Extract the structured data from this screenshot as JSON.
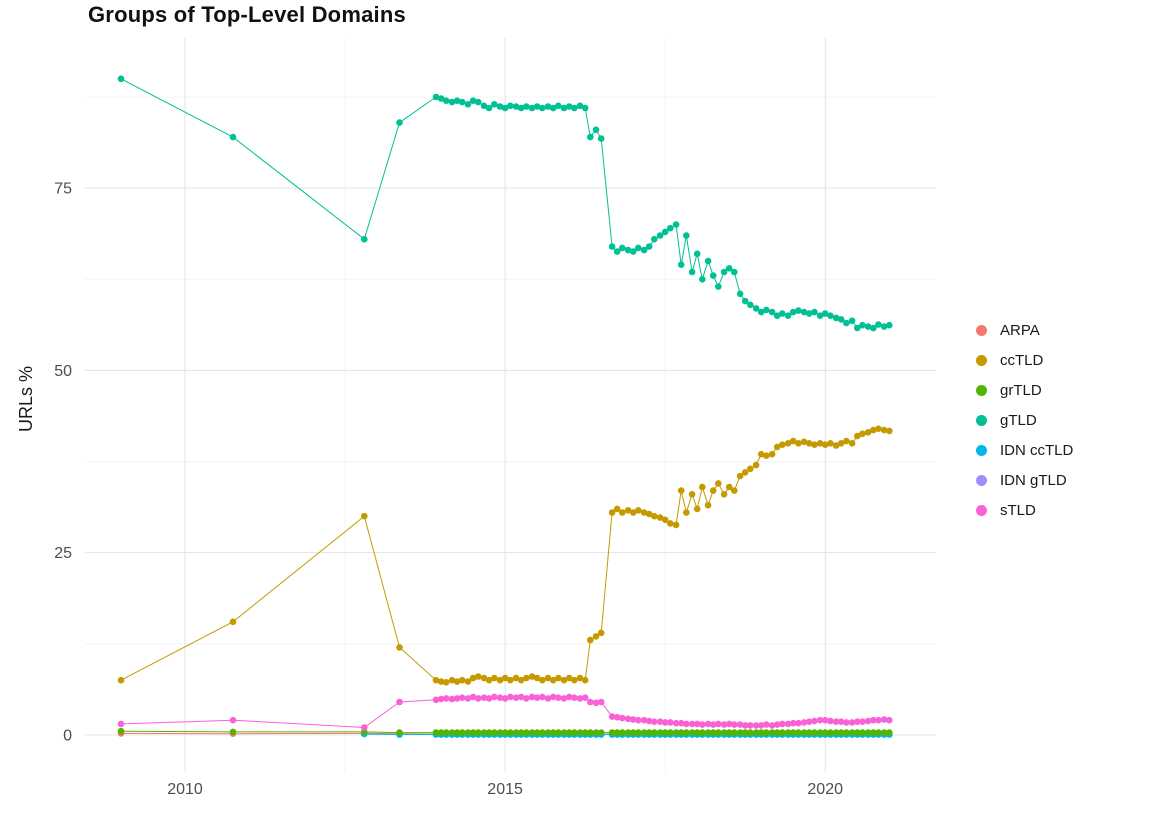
{
  "chart_data": {
    "type": "line",
    "title": "Groups of Top-Level Domains",
    "xlabel": "",
    "x_axis": {
      "ticks": [
        2010,
        2015,
        2020
      ],
      "tick_labels": [
        "2010",
        "2015",
        "2020"
      ],
      "minor": [
        2012.5,
        2017.5
      ],
      "range": [
        2008.4375,
        2021.73
      ]
    },
    "y_axis": {
      "label": "URLs %",
      "ticks": [
        0,
        25,
        50,
        75
      ],
      "tick_labels": [
        "0",
        "25",
        "50",
        "75"
      ],
      "minor": [
        12.5,
        37.5,
        62.5,
        87.5
      ],
      "range": [
        -5.1,
        95.6
      ]
    },
    "legend_position": "right",
    "grid": true,
    "style": {
      "grid_major": "#e3e3e3",
      "grid_minor": "#f4f4f4",
      "tick_text": "#4d4d4d",
      "title_text": "#111111",
      "background": "#ffffff"
    },
    "draw_order": [
      0,
      5,
      4,
      2,
      1,
      3,
      6
    ],
    "x": [
      2009.0,
      2010.75,
      2012.8,
      2013.35,
      2013.92,
      2014.0,
      2014.08,
      2014.17,
      2014.25,
      2014.33,
      2014.42,
      2014.5,
      2014.58,
      2014.67,
      2014.75,
      2014.83,
      2014.92,
      2015.0,
      2015.08,
      2015.17,
      2015.25,
      2015.33,
      2015.42,
      2015.5,
      2015.58,
      2015.67,
      2015.75,
      2015.83,
      2015.92,
      2016.0,
      2016.08,
      2016.17,
      2016.25,
      2016.33,
      2016.42,
      2016.5,
      2016.67,
      2016.75,
      2016.83,
      2016.92,
      2017.0,
      2017.08,
      2017.17,
      2017.25,
      2017.33,
      2017.42,
      2017.5,
      2017.58,
      2017.67,
      2017.75,
      2017.83,
      2017.92,
      2018.0,
      2018.08,
      2018.17,
      2018.25,
      2018.33,
      2018.42,
      2018.5,
      2018.58,
      2018.67,
      2018.75,
      2018.83,
      2018.92,
      2019.0,
      2019.08,
      2019.17,
      2019.25,
      2019.33,
      2019.42,
      2019.5,
      2019.58,
      2019.67,
      2019.75,
      2019.83,
      2019.92,
      2020.0,
      2020.08,
      2020.17,
      2020.25,
      2020.33,
      2020.42,
      2020.5,
      2020.58,
      2020.67,
      2020.75,
      2020.83,
      2020.92,
      2021.0
    ],
    "series": [
      {
        "name": "ARPA",
        "color": "#F8766D",
        "values": [
          0.2,
          0.15,
          0.2,
          0.15,
          0.1,
          0.1,
          0.1,
          0.1,
          0.1,
          0.1,
          0.1,
          0.1,
          0.1,
          0.1,
          0.1,
          0.1,
          0.1,
          0.1,
          0.1,
          0.1,
          0.1,
          0.1,
          0.1,
          0.1,
          0.1,
          0.1,
          0.1,
          0.1,
          0.1,
          0.1,
          0.1,
          0.1,
          0.1,
          0.1,
          0.1,
          0.1,
          0.1,
          0.1,
          0.1,
          0.1,
          0.1,
          0.1,
          0.1,
          0.1,
          0.1,
          0.1,
          0.1,
          0.1,
          0.1,
          0.1,
          0.1,
          0.1,
          0.1,
          0.1,
          0.1,
          0.1,
          0.1,
          0.1,
          0.1,
          0.1,
          0.1,
          0.1,
          0.1,
          0.1,
          0.1,
          0.1,
          0.1,
          0.1,
          0.1,
          0.1,
          0.1,
          0.1,
          0.1,
          0.1,
          0.1,
          0.1,
          0.1,
          0.1,
          0.1,
          0.1,
          0.1,
          0.1,
          0.1,
          0.1,
          0.1,
          0.1,
          0.1,
          0.1,
          0.1
        ]
      },
      {
        "name": "ccTLD",
        "color": "#C49A00",
        "values": [
          7.5,
          15.5,
          30.0,
          12.0,
          7.5,
          7.3,
          7.2,
          7.5,
          7.3,
          7.5,
          7.3,
          7.8,
          8.0,
          7.8,
          7.5,
          7.8,
          7.5,
          7.8,
          7.5,
          7.8,
          7.5,
          7.8,
          8.0,
          7.8,
          7.5,
          7.8,
          7.5,
          7.8,
          7.5,
          7.8,
          7.5,
          7.8,
          7.5,
          13.0,
          13.5,
          14.0,
          30.5,
          31.0,
          30.5,
          30.8,
          30.5,
          30.8,
          30.5,
          30.3,
          30.0,
          29.8,
          29.5,
          29.0,
          28.8,
          33.5,
          30.5,
          33.0,
          31.0,
          34.0,
          31.5,
          33.5,
          34.5,
          33.0,
          34.0,
          33.5,
          35.5,
          36.0,
          36.5,
          37.0,
          38.5,
          38.3,
          38.5,
          39.5,
          39.8,
          40.0,
          40.3,
          40.0,
          40.2,
          40.0,
          39.8,
          40.0,
          39.8,
          40.0,
          39.7,
          40.0,
          40.3,
          40.0,
          41.0,
          41.3,
          41.5,
          41.8,
          42.0,
          41.8,
          41.7
        ]
      },
      {
        "name": "grTLD",
        "color": "#53B400",
        "values": [
          0.5,
          0.4,
          0.4,
          0.3,
          0.3,
          0.3,
          0.3,
          0.3,
          0.3,
          0.3,
          0.3,
          0.3,
          0.3,
          0.3,
          0.3,
          0.3,
          0.3,
          0.3,
          0.3,
          0.3,
          0.3,
          0.3,
          0.3,
          0.3,
          0.3,
          0.3,
          0.3,
          0.3,
          0.3,
          0.3,
          0.3,
          0.3,
          0.3,
          0.3,
          0.3,
          0.3,
          0.3,
          0.3,
          0.3,
          0.3,
          0.3,
          0.3,
          0.3,
          0.3,
          0.3,
          0.3,
          0.3,
          0.3,
          0.3,
          0.3,
          0.3,
          0.3,
          0.3,
          0.3,
          0.3,
          0.3,
          0.3,
          0.3,
          0.3,
          0.3,
          0.3,
          0.3,
          0.3,
          0.3,
          0.3,
          0.3,
          0.3,
          0.3,
          0.3,
          0.3,
          0.3,
          0.3,
          0.3,
          0.3,
          0.3,
          0.3,
          0.3,
          0.3,
          0.3,
          0.3,
          0.3,
          0.3,
          0.3,
          0.3,
          0.3,
          0.3,
          0.3,
          0.3,
          0.3
        ]
      },
      {
        "name": "gTLD",
        "color": "#00C094",
        "values": [
          90.0,
          82.0,
          68.0,
          84.0,
          87.5,
          87.3,
          87.0,
          86.8,
          87.0,
          86.8,
          86.5,
          87.0,
          86.8,
          86.3,
          86.0,
          86.5,
          86.2,
          86.0,
          86.3,
          86.2,
          86.0,
          86.2,
          86.0,
          86.2,
          86.0,
          86.2,
          86.0,
          86.3,
          86.0,
          86.2,
          86.0,
          86.3,
          86.0,
          82.0,
          83.0,
          81.8,
          67.0,
          66.3,
          66.8,
          66.5,
          66.3,
          66.8,
          66.5,
          67.0,
          68.0,
          68.5,
          69.0,
          69.5,
          70.0,
          64.5,
          68.5,
          63.5,
          66.0,
          62.5,
          65.0,
          63.0,
          61.5,
          63.5,
          64.0,
          63.5,
          60.5,
          59.5,
          59.0,
          58.5,
          58.0,
          58.3,
          58.0,
          57.5,
          57.8,
          57.5,
          58.0,
          58.2,
          58.0,
          57.8,
          58.0,
          57.5,
          57.8,
          57.5,
          57.2,
          57.0,
          56.5,
          56.8,
          55.8,
          56.2,
          56.0,
          55.8,
          56.3,
          56.0,
          56.2
        ]
      },
      {
        "name": "IDN ccTLD",
        "color": "#00B6EB",
        "values": [
          null,
          null,
          0.1,
          0.05,
          0.05,
          0.05,
          0.05,
          0.05,
          0.05,
          0.05,
          0.05,
          0.05,
          0.05,
          0.05,
          0.05,
          0.05,
          0.05,
          0.05,
          0.05,
          0.05,
          0.05,
          0.05,
          0.05,
          0.05,
          0.05,
          0.05,
          0.05,
          0.05,
          0.05,
          0.05,
          0.05,
          0.05,
          0.05,
          0.05,
          0.05,
          0.05,
          0.05,
          0.05,
          0.05,
          0.05,
          0.05,
          0.05,
          0.05,
          0.05,
          0.05,
          0.05,
          0.05,
          0.05,
          0.05,
          0.05,
          0.05,
          0.05,
          0.05,
          0.05,
          0.05,
          0.05,
          0.05,
          0.05,
          0.05,
          0.05,
          0.05,
          0.05,
          0.05,
          0.05,
          0.05,
          0.05,
          0.05,
          0.05,
          0.05,
          0.05,
          0.05,
          0.05,
          0.05,
          0.05,
          0.05,
          0.05,
          0.05,
          0.05,
          0.05,
          0.05,
          0.05,
          0.05,
          0.05,
          0.05,
          0.05,
          0.05,
          0.05,
          0.05,
          0.05
        ]
      },
      {
        "name": "IDN gTLD",
        "color": "#A58AFF",
        "values": [
          null,
          null,
          null,
          0.05,
          0.05,
          0.05,
          0.05,
          0.05,
          0.05,
          0.05,
          0.05,
          0.05,
          0.05,
          0.05,
          0.05,
          0.05,
          0.05,
          0.05,
          0.05,
          0.05,
          0.05,
          0.05,
          0.05,
          0.05,
          0.05,
          0.05,
          0.05,
          0.05,
          0.05,
          0.05,
          0.05,
          0.05,
          0.05,
          0.05,
          0.05,
          0.05,
          0.05,
          0.05,
          0.05,
          0.05,
          0.05,
          0.05,
          0.05,
          0.05,
          0.05,
          0.05,
          0.05,
          0.05,
          0.05,
          0.05,
          0.05,
          0.05,
          0.05,
          0.05,
          0.05,
          0.05,
          0.05,
          0.05,
          0.05,
          0.05,
          0.05,
          0.05,
          0.05,
          0.05,
          0.05,
          0.05,
          0.05,
          0.05,
          0.05,
          0.05,
          0.05,
          0.05,
          0.05,
          0.05,
          0.05,
          0.05,
          0.05,
          0.05,
          0.05,
          0.05,
          0.05,
          0.05,
          0.05,
          0.05,
          0.05,
          0.05,
          0.05,
          0.05,
          0.05
        ]
      },
      {
        "name": "sTLD",
        "color": "#FB61D7",
        "values": [
          1.5,
          2.0,
          1.0,
          4.5,
          4.8,
          4.9,
          5.0,
          4.9,
          5.0,
          5.1,
          5.0,
          5.2,
          5.0,
          5.1,
          5.0,
          5.2,
          5.1,
          5.0,
          5.2,
          5.1,
          5.2,
          5.0,
          5.2,
          5.1,
          5.2,
          5.0,
          5.2,
          5.1,
          5.0,
          5.2,
          5.1,
          5.0,
          5.1,
          4.5,
          4.4,
          4.5,
          2.5,
          2.4,
          2.3,
          2.2,
          2.1,
          2.0,
          2.0,
          1.9,
          1.8,
          1.8,
          1.7,
          1.7,
          1.6,
          1.6,
          1.5,
          1.5,
          1.5,
          1.4,
          1.5,
          1.4,
          1.5,
          1.4,
          1.5,
          1.4,
          1.4,
          1.3,
          1.3,
          1.3,
          1.3,
          1.4,
          1.3,
          1.4,
          1.5,
          1.5,
          1.6,
          1.6,
          1.7,
          1.8,
          1.9,
          2.0,
          2.0,
          1.9,
          1.8,
          1.8,
          1.7,
          1.7,
          1.8,
          1.8,
          1.9,
          2.0,
          2.0,
          2.1,
          2.0
        ]
      }
    ]
  }
}
